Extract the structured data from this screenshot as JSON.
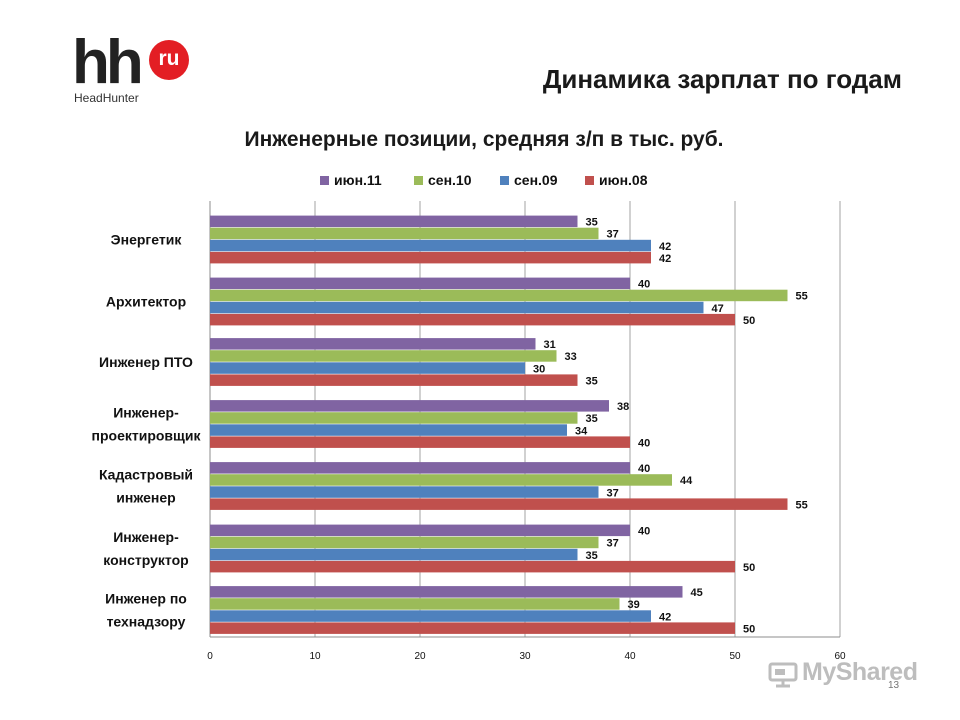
{
  "logo": {
    "main": "hh",
    "badge": "ru",
    "sub": "HeadHunter"
  },
  "slide_title": "Динамика зарплат по годам",
  "page_number": "13",
  "watermark": {
    "text": "MyShared"
  },
  "colors": {
    "iun11": "#8064a2",
    "sen10": "#9bbb59",
    "sen09": "#4f81bd",
    "iun08": "#c0504d"
  },
  "chart_data": {
    "type": "bar",
    "orientation": "horizontal",
    "title": "Инженерные позиции, средняя з/п в тыс. руб.",
    "categories": [
      "Энергетик",
      "Архитектор",
      "Инженер ПТО",
      "Инженер-\nпроектировщик",
      "Кадастровый\nинженер",
      "Инженер-\nконструктор",
      "Инженер по\nтехнадзору"
    ],
    "series": [
      {
        "name": "июн.11",
        "color": "#8064a2",
        "values": [
          35,
          40,
          31,
          38,
          40,
          40,
          45
        ]
      },
      {
        "name": "сен.10",
        "color": "#9bbb59",
        "values": [
          37,
          55,
          33,
          35,
          44,
          37,
          39
        ]
      },
      {
        "name": "сен.09",
        "color": "#4f81bd",
        "values": [
          42,
          47,
          30,
          34,
          37,
          35,
          42
        ]
      },
      {
        "name": "июн.08",
        "color": "#c0504d",
        "values": [
          42,
          50,
          35,
          40,
          55,
          50,
          50
        ]
      }
    ],
    "xlim": [
      0,
      60
    ],
    "xticks": [
      0,
      10,
      20,
      30,
      40,
      50,
      60
    ],
    "grid": true,
    "legend_position": "top",
    "data_labels": true
  }
}
